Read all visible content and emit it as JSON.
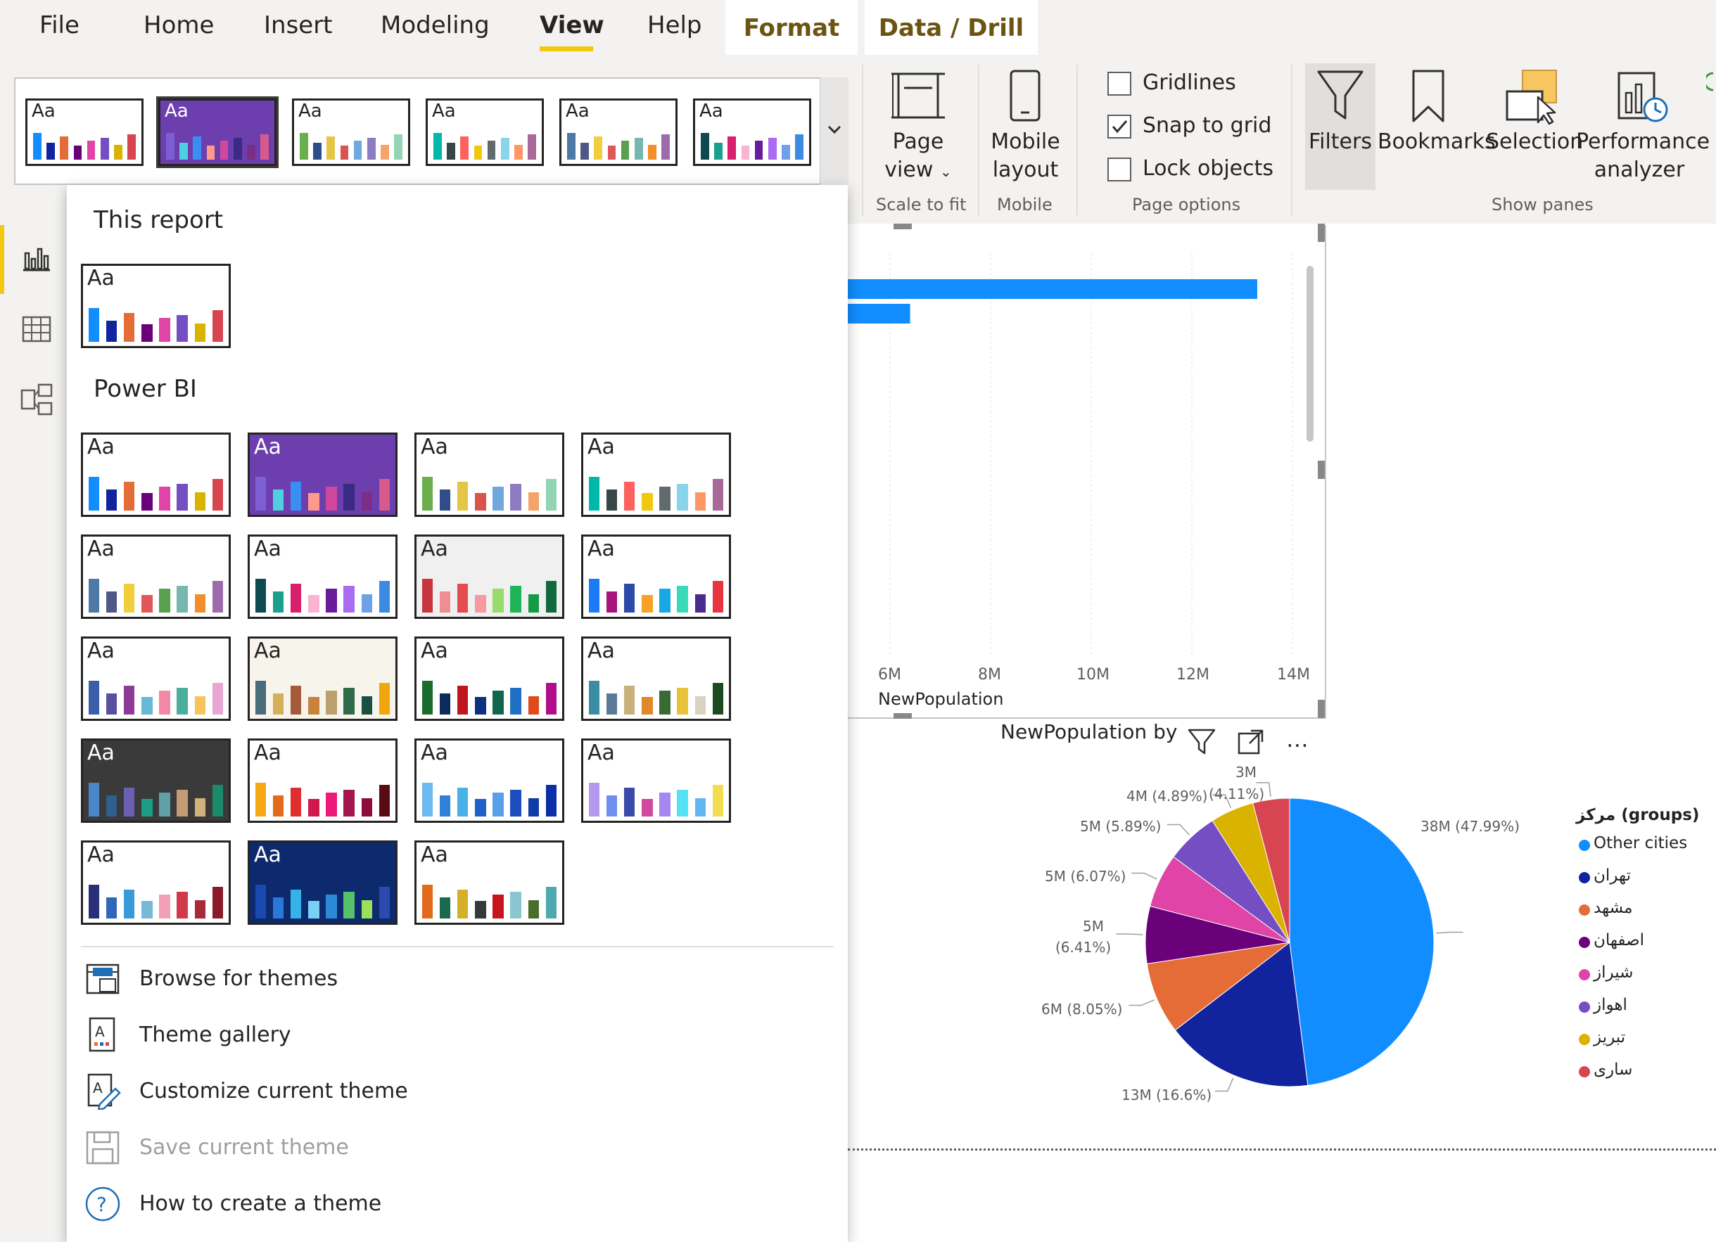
{
  "menu": {
    "tabs": [
      "File",
      "Home",
      "Insert",
      "Modeling",
      "View",
      "Help"
    ],
    "context_tabs": [
      "Format",
      "Data / Drill"
    ],
    "active_tab": "View"
  },
  "ribbon": {
    "page_view": {
      "line1": "Page",
      "line2": "view"
    },
    "mobile_layout": {
      "line1": "Mobile",
      "line2": "layout"
    },
    "gridlines": {
      "label": "Gridlines",
      "checked": false
    },
    "snap_to_grid": {
      "label": "Snap to grid",
      "checked": true
    },
    "lock_objects": {
      "label": "Lock objects",
      "checked": false
    },
    "filters": "Filters",
    "bookmarks": "Bookmarks",
    "selection": "Selection",
    "performance_analyzer": {
      "line1": "Performance",
      "line2": "analyzer"
    },
    "groups": {
      "scale_to_fit": "Scale to fit",
      "mobile": "Mobile",
      "page_options": "Page options",
      "show_panes": "Show panes"
    }
  },
  "theme_label": "Aa",
  "dropdown": {
    "this_report": "This report",
    "power_bi": "Power BI",
    "items": {
      "browse": "Browse for themes",
      "gallery": "Theme gallery",
      "customize": "Customize current theme",
      "save": "Save current theme",
      "how_to": "How to create a theme"
    }
  },
  "themes": [
    {
      "bg": "#ffffff",
      "fg": "#252423",
      "colors": [
        "#118dff",
        "#12239e",
        "#e66c37",
        "#6b007b",
        "#e044a7",
        "#744ec2",
        "#d9b300",
        "#d64550"
      ]
    },
    {
      "bg": "#6d3fae",
      "fg": "#ffffff",
      "colors": [
        "#7d5ed4",
        "#4ed0e2",
        "#3a8df3",
        "#ff9a8b",
        "#d0489e",
        "#3b2a83",
        "#7a2e88",
        "#d65a8c"
      ]
    },
    {
      "bg": "#ffffff",
      "fg": "#252423",
      "colors": [
        "#6aae4e",
        "#304c8a",
        "#e4c545",
        "#d9534f",
        "#6fa8dc",
        "#8e7cc3",
        "#f6a26b",
        "#92d4b4"
      ]
    },
    {
      "bg": "#ffffff",
      "fg": "#252423",
      "colors": [
        "#01b8aa",
        "#374649",
        "#fd625e",
        "#f2c80f",
        "#5f6b6d",
        "#8ad4eb",
        "#fe9666",
        "#a66999"
      ]
    },
    {
      "bg": "#ffffff",
      "fg": "#252423",
      "colors": [
        "#4e79a7",
        "#4e5a85",
        "#f1ce3d",
        "#e15759",
        "#59a14f",
        "#76b7b2",
        "#f28e2b",
        "#9c6ba9"
      ]
    },
    {
      "bg": "#ffffff",
      "fg": "#252423",
      "colors": [
        "#0e4a4f",
        "#1aa08c",
        "#d91e6b",
        "#f9b4d3",
        "#6a1b9a",
        "#a86bf2",
        "#6ea1e8",
        "#3c8be0"
      ]
    },
    {
      "bg": "#f0f0f0",
      "fg": "#252423",
      "colors": [
        "#c7353f",
        "#ef8e92",
        "#e44b4f",
        "#f49aa0",
        "#98dd6a",
        "#1fb45a",
        "#169a45",
        "#12693b"
      ]
    },
    {
      "bg": "#ffffff",
      "fg": "#252423",
      "colors": [
        "#1a7bf5",
        "#a7137b",
        "#2c4aa8",
        "#f6a227",
        "#17a9e6",
        "#3ad9b8",
        "#4b2a8e",
        "#e6353f"
      ]
    },
    {
      "bg": "#ffffff",
      "fg": "#252423",
      "colors": [
        "#3a5fa8",
        "#5b4fa0",
        "#8e3b98",
        "#68b8d8",
        "#f08aa6",
        "#4cae9c",
        "#f6c45a",
        "#e6a8d2"
      ]
    },
    {
      "bg": "#f7f4ec",
      "fg": "#252423",
      "colors": [
        "#4a6b7c",
        "#d4b05a",
        "#a65a3c",
        "#c9823d",
        "#bba06e",
        "#2f6a4b",
        "#1b4f42",
        "#f2a60d"
      ]
    },
    {
      "bg": "#ffffff",
      "fg": "#252423",
      "colors": [
        "#1a6b2e",
        "#0c2a5c",
        "#c0151c",
        "#0d3080",
        "#10674c",
        "#1f70c4",
        "#e04a1a",
        "#b10d8a"
      ]
    },
    {
      "bg": "#ffffff",
      "fg": "#252423",
      "colors": [
        "#3a8da0",
        "#5a7a9a",
        "#c7b07a",
        "#e0882a",
        "#3a6a34",
        "#e8c23a",
        "#d8d2bf",
        "#1e4a22"
      ]
    },
    {
      "bg": "#3a3a3a",
      "fg": "#ffffff",
      "colors": [
        "#4a86c8",
        "#2e5f8e",
        "#6a5fb0",
        "#1b9e86",
        "#5fa0a8",
        "#c49b72",
        "#d1b179",
        "#1a8a6b"
      ]
    },
    {
      "bg": "#ffffff",
      "fg": "#252423",
      "colors": [
        "#f7a713",
        "#e26a1a",
        "#e02e2e",
        "#d0184f",
        "#ee1a7a",
        "#a2174e",
        "#8f0c3a",
        "#5a0a12"
      ]
    },
    {
      "bg": "#ffffff",
      "fg": "#252423",
      "colors": [
        "#6ab9f3",
        "#2f80d8",
        "#4ab1e8",
        "#1e61c9",
        "#5aa0e8",
        "#1a4fbd",
        "#0e3ca6",
        "#0a2fa8"
      ]
    },
    {
      "bg": "#ffffff",
      "fg": "#252423",
      "colors": [
        "#b39af0",
        "#6e8ff0",
        "#3a4aa8",
        "#d24aa0",
        "#a886f2",
        "#53e3f5",
        "#60b8f0",
        "#f2dc50"
      ]
    },
    {
      "bg": "#ffffff",
      "fg": "#252423",
      "colors": [
        "#2a2f7a",
        "#2e68b8",
        "#3a9ad8",
        "#7ab8d8",
        "#f2a0b8",
        "#d23a4a",
        "#a82a3a",
        "#8a1a2a"
      ]
    },
    {
      "bg": "#0d2a6e",
      "fg": "#ffffff",
      "colors": [
        "#1a4ab0",
        "#2a78d8",
        "#36b2e8",
        "#7ad0f2",
        "#2a8ad8",
        "#56c16a",
        "#9ae05a",
        "#2a4ab0"
      ]
    },
    {
      "bg": "#ffffff",
      "fg": "#252423",
      "colors": [
        "#e26a1a",
        "#1a6b4e",
        "#d4b02a",
        "#333a3a",
        "#c8141e",
        "#8bc6d0",
        "#4a6e2a",
        "#4eaab0"
      ]
    }
  ],
  "bar_chart": {
    "x_ticks": [
      "6M",
      "8M",
      "10M",
      "12M",
      "14M"
    ],
    "x_label": "NewPopulation",
    "color": "#118dff"
  },
  "pie_chart": {
    "title": "NewPopulation by",
    "legend_title": "مرکز (groups)",
    "data_labels": {
      "s0": "38M (47.99%)",
      "s1": "13M (16.6%)",
      "s2": "6M (8.05%)",
      "s3a": "5M",
      "s3b": "(6.41%)",
      "s4": "5M (6.07%)",
      "s5": "5M (5.89%)",
      "s6": "4M (4.89%)",
      "s7a": "3M",
      "s7b": "(4.11%)"
    }
  },
  "chart_data": [
    {
      "type": "bar",
      "title": "",
      "xlabel": "NewPopulation",
      "x_ticks": [
        "6M",
        "8M",
        "10M",
        "12M",
        "14M"
      ],
      "values": [
        13.3,
        6.4
      ],
      "unit": "M",
      "note_visible": "only two bars visible; category labels hidden behind dropdown"
    },
    {
      "type": "pie",
      "title": "NewPopulation by",
      "legend_title": "مرکز (groups)",
      "labels": [
        "Other cities",
        "تهران",
        "مشهد",
        "اصفهان",
        "شیراز",
        "اهواز",
        "تبریز",
        "ساری"
      ],
      "values": [
        47.99,
        16.6,
        8.05,
        6.41,
        6.07,
        5.89,
        4.89,
        4.11
      ],
      "value_labels": [
        "38M (47.99%)",
        "13M (16.6%)",
        "6M (8.05%)",
        "5M (6.41%)",
        "5M (6.07%)",
        "5M (5.89%)",
        "4M (4.89%)",
        "3M (4.11%)"
      ],
      "colors": [
        "#118dff",
        "#12239e",
        "#e66c37",
        "#6b007b",
        "#e044a7",
        "#744ec2",
        "#d9b300",
        "#d64550"
      ],
      "legend_position": "right"
    }
  ]
}
